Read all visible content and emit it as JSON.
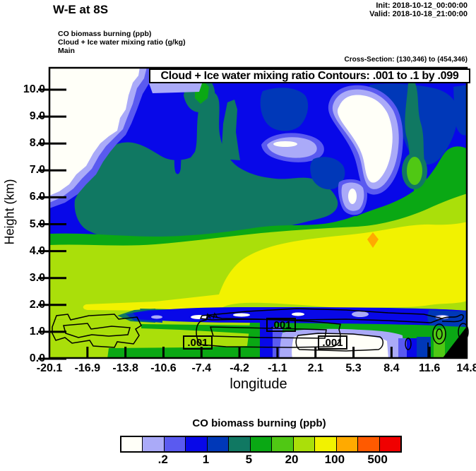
{
  "header": {
    "title": "W-E at 8S",
    "init": "Init: 2018-10-12_00:00:00",
    "valid": "Valid: 2018-10-18_21:00:00",
    "field_lines": [
      "CO biomass burning   (ppb)",
      "Cloud + Ice water mixing ratio   (g/kg)",
      "Main"
    ],
    "cross_section": "Cross-Section: (130,346) to (454,346)"
  },
  "plot": {
    "box_title": "Cloud + Ice water mixing ratio Contours: .001 to .1 by .099",
    "ylabel": "Height (km)",
    "xlabel": "longitude",
    "y_ticks": [
      "0.0",
      "1.0",
      "2.0",
      "3.0",
      "4.0",
      "5.0",
      "6.0",
      "7.0",
      "8.0",
      "9.0",
      "10.0"
    ],
    "x_ticks": [
      "-20.1",
      "-16.9",
      "-13.8",
      "-10.6",
      "-7.4",
      "-4.2",
      "-1.1",
      "2.1",
      "5.3",
      "8.4",
      "11.6",
      "14.8"
    ],
    "contour_labels": [
      ".001",
      ".001",
      ".001"
    ]
  },
  "colorbar": {
    "title": "CO biomass burning  (ppb)",
    "labels": [
      ".2",
      "1",
      "5",
      "20",
      "100",
      "500"
    ],
    "colors": [
      "#FFFFF8",
      "#AAAAF8",
      "#5A5AF0",
      "#0808E8",
      "#0038B8",
      "#107862",
      "#0AA814",
      "#50C814",
      "#AADF0A",
      "#F2F200",
      "#FFAA00",
      "#FF5A00",
      "#F00000"
    ]
  },
  "palette": {
    "white": "#FFFFF8",
    "lavender": "#AAAAF8",
    "purple": "#5A5AF0",
    "blue": "#0808E8",
    "darkblue": "#0038B8",
    "teal": "#107862",
    "green": "#0AA814",
    "lightgreen": "#50C814",
    "yellowgreen": "#AADF0A",
    "yellow": "#F2F200",
    "amber": "#FFAA00",
    "orange": "#FF5A00",
    "red": "#F00000",
    "black": "#000000"
  },
  "chart_data": {
    "type": "heatmap",
    "subtype": "filled-contour vertical cross-section (model output)",
    "title": "W-E at 8S",
    "overlay_title": "Cloud + Ice water mixing ratio Contours: .001 to .1 by .099",
    "init_time": "2018-10-12_00:00:00",
    "valid_time": "2018-10-18_21:00:00",
    "cross_section_gridpoints": "(130,346) to (454,346)",
    "xlabel": "longitude",
    "ylabel": "Height (km)",
    "x_tick_values": [
      -20.1,
      -16.9,
      -13.8,
      -10.6,
      -7.4,
      -4.2,
      -1.1,
      2.1,
      5.3,
      8.4,
      11.6,
      14.8
    ],
    "y_tick_values": [
      0,
      1,
      2,
      3,
      4,
      5,
      6,
      7,
      8,
      9,
      10
    ],
    "ylim": [
      0,
      10.8
    ],
    "shaded_field": {
      "name": "CO biomass burning (ppb)",
      "level_boundaries_labeled": [
        0.2,
        1,
        5,
        20,
        100,
        500
      ],
      "n_color_bins": 13,
      "bin_colors": [
        "#FFFFF8",
        "#AAAAF8",
        "#5A5AF0",
        "#0808E8",
        "#0038B8",
        "#107862",
        "#0AA814",
        "#50C814",
        "#AADF0A",
        "#F2F200",
        "#FFAA00",
        "#FF5A00",
        "#F00000"
      ]
    },
    "contour_field": {
      "name": "Cloud + Ice water mixing ratio (g/kg)",
      "levels": [
        0.001,
        0.1
      ],
      "spec": ".001 to .1 by .099",
      "label_shown": ".001"
    },
    "features": [
      "Low CO (white, <0.1 ppb) wedge in upper-left above ~6 km west of -14 lon",
      "Low CO white blob near 7.5-9.5 km around lon 2-5",
      "Blue (0.5-2 ppb) region dominates 6-10.5 km",
      "Dark teal/green (2-10 ppb) mass 3.5-6.5 km on western half",
      "Broad yellow plume (50-100 ppb) 2-5 km across lon -5 to 14.8, peak orange (100-200 ppb) spot near lon 4.3 at ~4.2 km",
      "Yellow-green (20-50 ppb) surrounds plume down to surface in west",
      "Thin blue (0.5-1 ppb) clean layer near 1.2 km from lon -14 eastward",
      "White/lavender low-CO pocket near surface around lon -1 to 3",
      "Cloud water 0.001 g/kg contour loops near 0.5-1.5 km with three .001 labels",
      "Black terrain wedge at surface near eastern edge (lon ~13-14.8)"
    ]
  }
}
